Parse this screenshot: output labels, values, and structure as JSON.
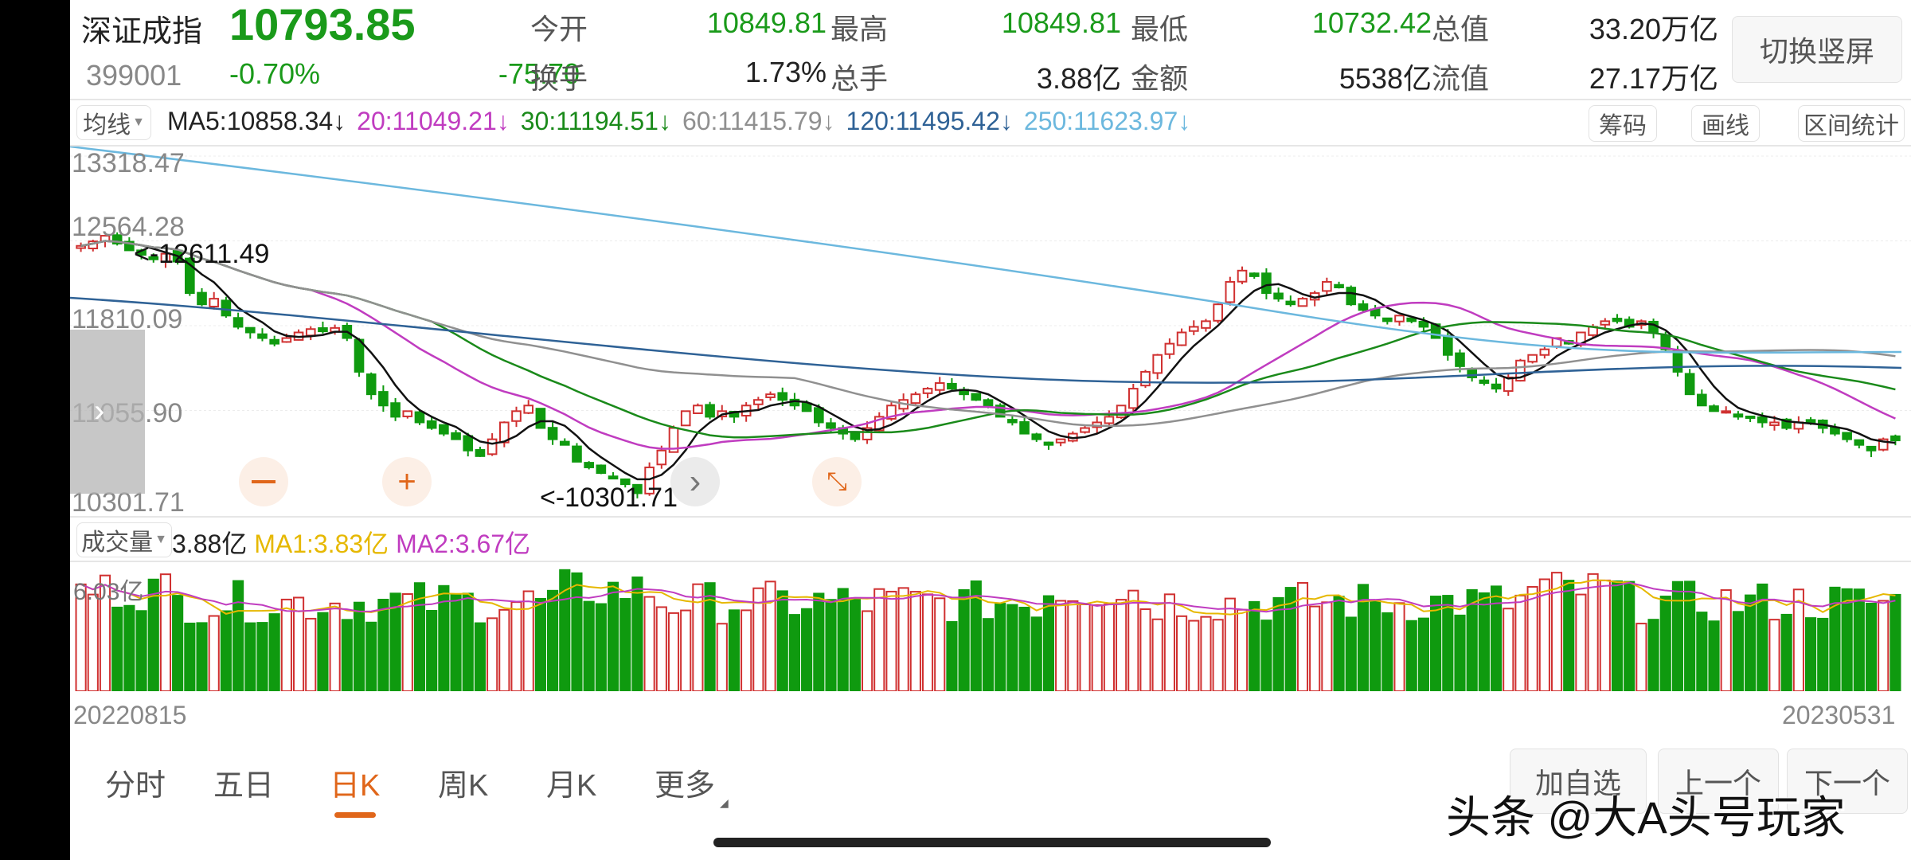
{
  "header": {
    "name": "深证成指",
    "price": "10793.85",
    "code": "399001",
    "change_pct": "-0.70%",
    "change": "-75.70",
    "stats": [
      {
        "label": "今开",
        "value": "10849.81",
        "color": "green"
      },
      {
        "label": "最高",
        "value": "10849.81",
        "color": "green"
      },
      {
        "label": "最低",
        "value": "10732.42",
        "color": "green"
      },
      {
        "label": "总值",
        "value": "33.20万亿",
        "color": "dark"
      },
      {
        "label": "换手",
        "value": "1.73%",
        "color": "dark"
      },
      {
        "label": "总手",
        "value": "3.88亿",
        "color": "dark"
      },
      {
        "label": "金额",
        "value": "5538亿",
        "color": "dark"
      },
      {
        "label": "流值",
        "value": "27.17万亿",
        "color": "dark"
      }
    ],
    "switch_button": "切换竖屏"
  },
  "ma_bar": {
    "selector": "均线",
    "items": [
      {
        "text": "MA5:10858.34↓",
        "color": "#222222"
      },
      {
        "text": "20:11049.21↓",
        "color": "#c03cc0"
      },
      {
        "text": "30:11194.51↓",
        "color": "#1a8a1a"
      },
      {
        "text": "60:11415.79↓",
        "color": "#909090"
      },
      {
        "text": "120:11495.42↓",
        "color": "#2f6296"
      },
      {
        "text": "250:11623.97↓",
        "color": "#6cb8de"
      }
    ],
    "buttons": [
      "筹码",
      "画线",
      "区间统计"
    ]
  },
  "price_axis": [
    "13318.47",
    "12564.28",
    "11810.09",
    "11055.90",
    "10301.71"
  ],
  "annotations": {
    "high": "<-12611.49",
    "low": "<-10301.71"
  },
  "volume_bar": {
    "selector": "成交量",
    "value": "3.88亿",
    "ma1": "MA1:3.83亿",
    "ma2": "MA2:3.67亿",
    "ma1_color": "#e6b800",
    "ma2_color": "#c03cc0",
    "axis_top": "6.03亿"
  },
  "date_axis": {
    "start": "20220815",
    "end": "20230531"
  },
  "period_tabs": [
    {
      "label": "分时",
      "active": false
    },
    {
      "label": "五日",
      "active": false
    },
    {
      "label": "日K",
      "active": true
    },
    {
      "label": "周K",
      "active": false
    },
    {
      "label": "月K",
      "active": false
    },
    {
      "label": "更多",
      "active": false
    }
  ],
  "bottom_buttons": [
    "加自选",
    "上一个",
    "下一个"
  ],
  "watermark": "头条 @大A头号玩家",
  "colors": {
    "up": "#d03030",
    "down": "#0f9a0f",
    "accent": "#e0661a"
  },
  "chart_data": {
    "type": "candlestick",
    "title": "深证成指 399001 日K",
    "x_range": [
      "20220815",
      "20230531"
    ],
    "ylim": [
      10301.71,
      13318.47
    ],
    "y_ticks": [
      13318.47,
      12564.28,
      11810.09,
      11055.9,
      10301.71
    ],
    "annotated_high": 12611.49,
    "annotated_low": 10301.71,
    "close": [
      12520,
      12560,
      12610,
      12540,
      12480,
      12440,
      12400,
      12450,
      12380,
      12100,
      12000,
      12050,
      11900,
      11800,
      11750,
      11700,
      11650,
      11700,
      11750,
      11780,
      11760,
      11790,
      11700,
      11400,
      11200,
      11100,
      11000,
      11050,
      10950,
      10900,
      10850,
      10800,
      10700,
      10650,
      10800,
      10950,
      11050,
      11100,
      10900,
      10800,
      10750,
      10600,
      10550,
      10500,
      10450,
      10400,
      10320,
      10550,
      10700,
      10900,
      11050,
      11100,
      11000,
      11050,
      11000,
      11100,
      11150,
      11200,
      11150,
      11100,
      11050,
      10950,
      10900,
      10850,
      10800,
      10900,
      11000,
      11100,
      11150,
      11200,
      11250,
      11300,
      11250,
      11200,
      11150,
      11100,
      11000,
      10950,
      10850,
      10800,
      10750,
      10800,
      10850,
      10900,
      10950,
      11000,
      11100,
      11250,
      11400,
      11550,
      11650,
      11750,
      11800,
      11850,
      12000,
      12200,
      12300,
      12250,
      12100,
      12050,
      12000,
      12050,
      12100,
      12200,
      12150,
      12000,
      11950,
      11900,
      11850,
      11900,
      11850,
      11800,
      11700,
      11550,
      11450,
      11350,
      11300,
      11250,
      11350,
      11500,
      11550,
      11600,
      11700,
      11650,
      11750,
      11800,
      11850,
      11850,
      11800,
      11850,
      11750,
      11600,
      11400,
      11200,
      11100,
      11050,
      11050,
      11000,
      11000,
      10950,
      10950,
      10900,
      10950,
      10950,
      10900,
      10850,
      10800,
      10750,
      10700,
      10800,
      10790
    ],
    "series": [
      {
        "name": "MA5",
        "value": 10858.34
      },
      {
        "name": "MA20",
        "value": 11049.21
      },
      {
        "name": "MA30",
        "value": 11194.51
      },
      {
        "name": "MA60",
        "value": 11415.79
      },
      {
        "name": "MA120",
        "value": 11495.42
      },
      {
        "name": "MA250",
        "value": 11623.97
      }
    ],
    "volume": {
      "latest": "3.88亿",
      "MA1": "3.83亿",
      "MA2": "3.67亿",
      "max_label": "6.03亿"
    },
    "grid": true
  }
}
